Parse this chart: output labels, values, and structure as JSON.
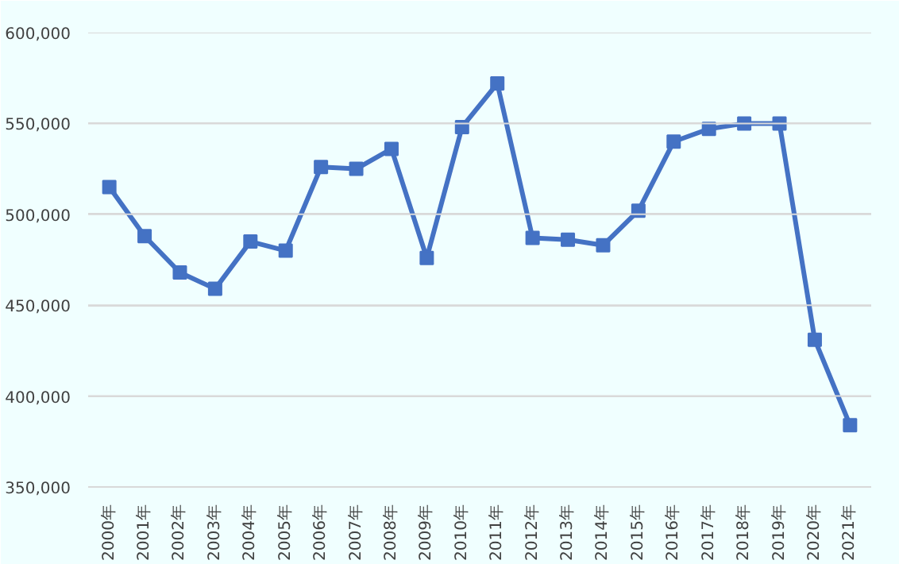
{
  "chart_data": {
    "type": "line",
    "categories": [
      "2000年",
      "2001年",
      "2002年",
      "2003年",
      "2004年",
      "2005年",
      "2006年",
      "2007年",
      "2008年",
      "2009年",
      "2010年",
      "2011年",
      "2012年",
      "2013年",
      "2014年",
      "2015年",
      "2016年",
      "2017年",
      "2018年",
      "2019年",
      "2020年",
      "2021年"
    ],
    "series": [
      {
        "color": "#4472c4",
        "values": [
          515000,
          488000,
          468000,
          459000,
          485000,
          480000,
          526000,
          525000,
          536000,
          476000,
          548000,
          572000,
          487000,
          486000,
          483000,
          502000,
          540000,
          547000,
          550000,
          550000,
          431000,
          384000
        ]
      }
    ],
    "ylim": [
      350000,
      600000
    ],
    "yticks": [
      {
        "value": 350000,
        "label": "350,000"
      },
      {
        "value": 400000,
        "label": "400,000"
      },
      {
        "value": 450000,
        "label": "450,000"
      },
      {
        "value": 500000,
        "label": "500,000"
      },
      {
        "value": 550000,
        "label": "550,000"
      },
      {
        "value": 600000,
        "label": "600,000"
      }
    ],
    "grid": "y",
    "marker": "square",
    "line_style": "solid"
  }
}
